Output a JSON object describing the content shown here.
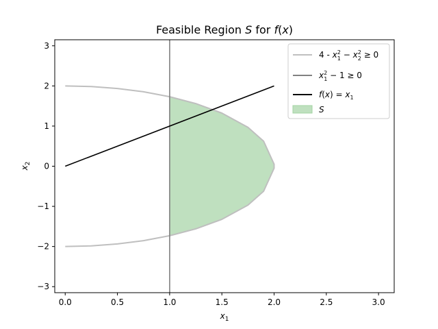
{
  "chart_data": {
    "type": "line",
    "title": "Feasible Region S for f(x)",
    "xlabel": "x1",
    "ylabel": "x2",
    "xlim": [
      -0.1,
      3.15
    ],
    "ylim": [
      -3.15,
      3.15
    ],
    "x_ticks": [
      0.0,
      0.5,
      1.0,
      1.5,
      2.0,
      2.5,
      3.0
    ],
    "x_tick_labels": [
      "0.0",
      "0.5",
      "1.0",
      "1.5",
      "2.0",
      "2.5",
      "3.0"
    ],
    "y_ticks": [
      -3,
      -2,
      -1,
      0,
      1,
      2,
      3
    ],
    "y_tick_labels": [
      "−3",
      "−2",
      "−1",
      "0",
      "1",
      "2",
      "3"
    ],
    "grid": false,
    "legend_position": "top-right",
    "series": [
      {
        "name": "4 - x1² − x2² ≥ 0",
        "color": "#bfbfbf",
        "kind": "curve",
        "x": [
          0.0,
          0.25,
          0.5,
          0.75,
          1.0,
          1.25,
          1.5,
          1.75,
          1.9,
          2.0,
          2.0,
          1.9,
          1.75,
          1.5,
          1.25,
          1.0,
          0.75,
          0.5,
          0.25,
          0.0
        ],
        "y": [
          2.0,
          1.984,
          1.936,
          1.854,
          1.732,
          1.561,
          1.323,
          0.968,
          0.624,
          0.05,
          -0.05,
          -0.624,
          -0.968,
          -1.323,
          -1.561,
          -1.732,
          -1.854,
          -1.936,
          -1.984,
          -2.0
        ]
      },
      {
        "name": "x1² − 1 ≥ 0",
        "color": "#808080",
        "kind": "vertical-line",
        "x": [
          1.0,
          1.0
        ],
        "y": [
          -3.15,
          3.15
        ]
      },
      {
        "name": "f(x) = x1",
        "color": "#000000",
        "kind": "line",
        "x": [
          0.0,
          2.0
        ],
        "y": [
          0.0,
          2.0
        ]
      },
      {
        "name": "S",
        "color": "#bfe0bf",
        "kind": "region",
        "x": [
          1.0,
          1.25,
          1.5,
          1.75,
          1.9,
          2.0,
          2.0,
          1.9,
          1.75,
          1.5,
          1.25,
          1.0
        ],
        "y": [
          1.732,
          1.561,
          1.323,
          0.968,
          0.624,
          0.05,
          -0.05,
          -0.624,
          -0.968,
          -1.323,
          -1.561,
          -1.732
        ]
      }
    ]
  }
}
